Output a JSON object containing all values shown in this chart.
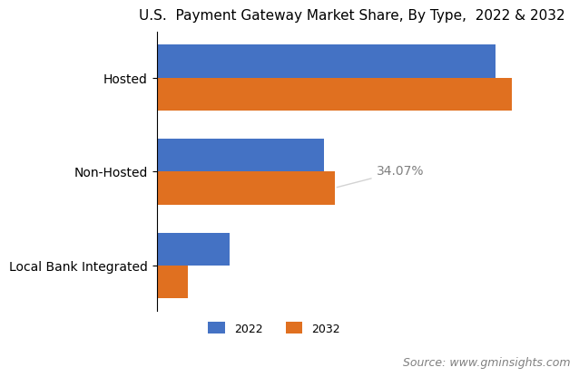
{
  "title": "U.S.  Payment Gateway Market Share, By Type,  2022 & 2032",
  "categories": [
    "Local Bank Integrated",
    "Non-Hosted",
    "Hosted"
  ],
  "values_2022": [
    14,
    32,
    65
  ],
  "values_2032": [
    6,
    34.07,
    68
  ],
  "color_2022": "#4472c4",
  "color_2032": "#e07020",
  "annotation_text": "34.07%",
  "annotation_bar": 1,
  "legend_labels": [
    "2022",
    "2032"
  ],
  "source_text": "Source: www.gminsights.com",
  "xlim": [
    0,
    75
  ],
  "bar_height": 0.35,
  "background_color": "#ffffff",
  "title_fontsize": 11,
  "label_fontsize": 10,
  "legend_fontsize": 9,
  "source_fontsize": 9
}
